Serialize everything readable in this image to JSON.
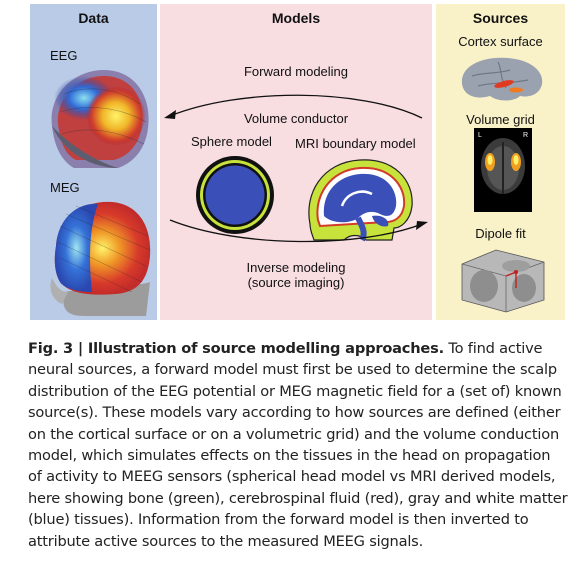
{
  "figure": {
    "data_panel": {
      "title": "Data",
      "eeg_label": "EEG",
      "meg_label": "MEG"
    },
    "models_panel": {
      "title": "Models",
      "forward_label": "Forward modeling",
      "volume_label": "Volume conductor",
      "sphere_label": "Sphere model",
      "mri_label": "MRI boundary model",
      "inverse_label_1": "Inverse modeling",
      "inverse_label_2": "(source imaging)"
    },
    "sources_panel": {
      "title": "Sources",
      "cortex_label": "Cortex surface",
      "volume_grid_label": "Volume grid",
      "dipole_label": "Dipole fit",
      "grid_left": "L",
      "grid_right": "R"
    }
  },
  "caption": {
    "label": "Fig. 3 | Illustration of source modelling approaches.",
    "text": " To find active neural sources, a forward model must first be used to determine the scalp distribution of the EEG potential or MEG magnetic field for a (set of) known source(s). These models vary according to how sources are defined (either on the cortical surface or on a volumetric grid) and the volume conduction model, which simulates effects on the tissues in the head on propagation of activity to MEEG sensors (spherical head model vs MRI derived models, here showing bone (green), cerebrospinal fluid (red), gray and white matter (blue) tissues). Information from the forward model is then inverted to attribute active sources to the measured MEEG signals."
  }
}
